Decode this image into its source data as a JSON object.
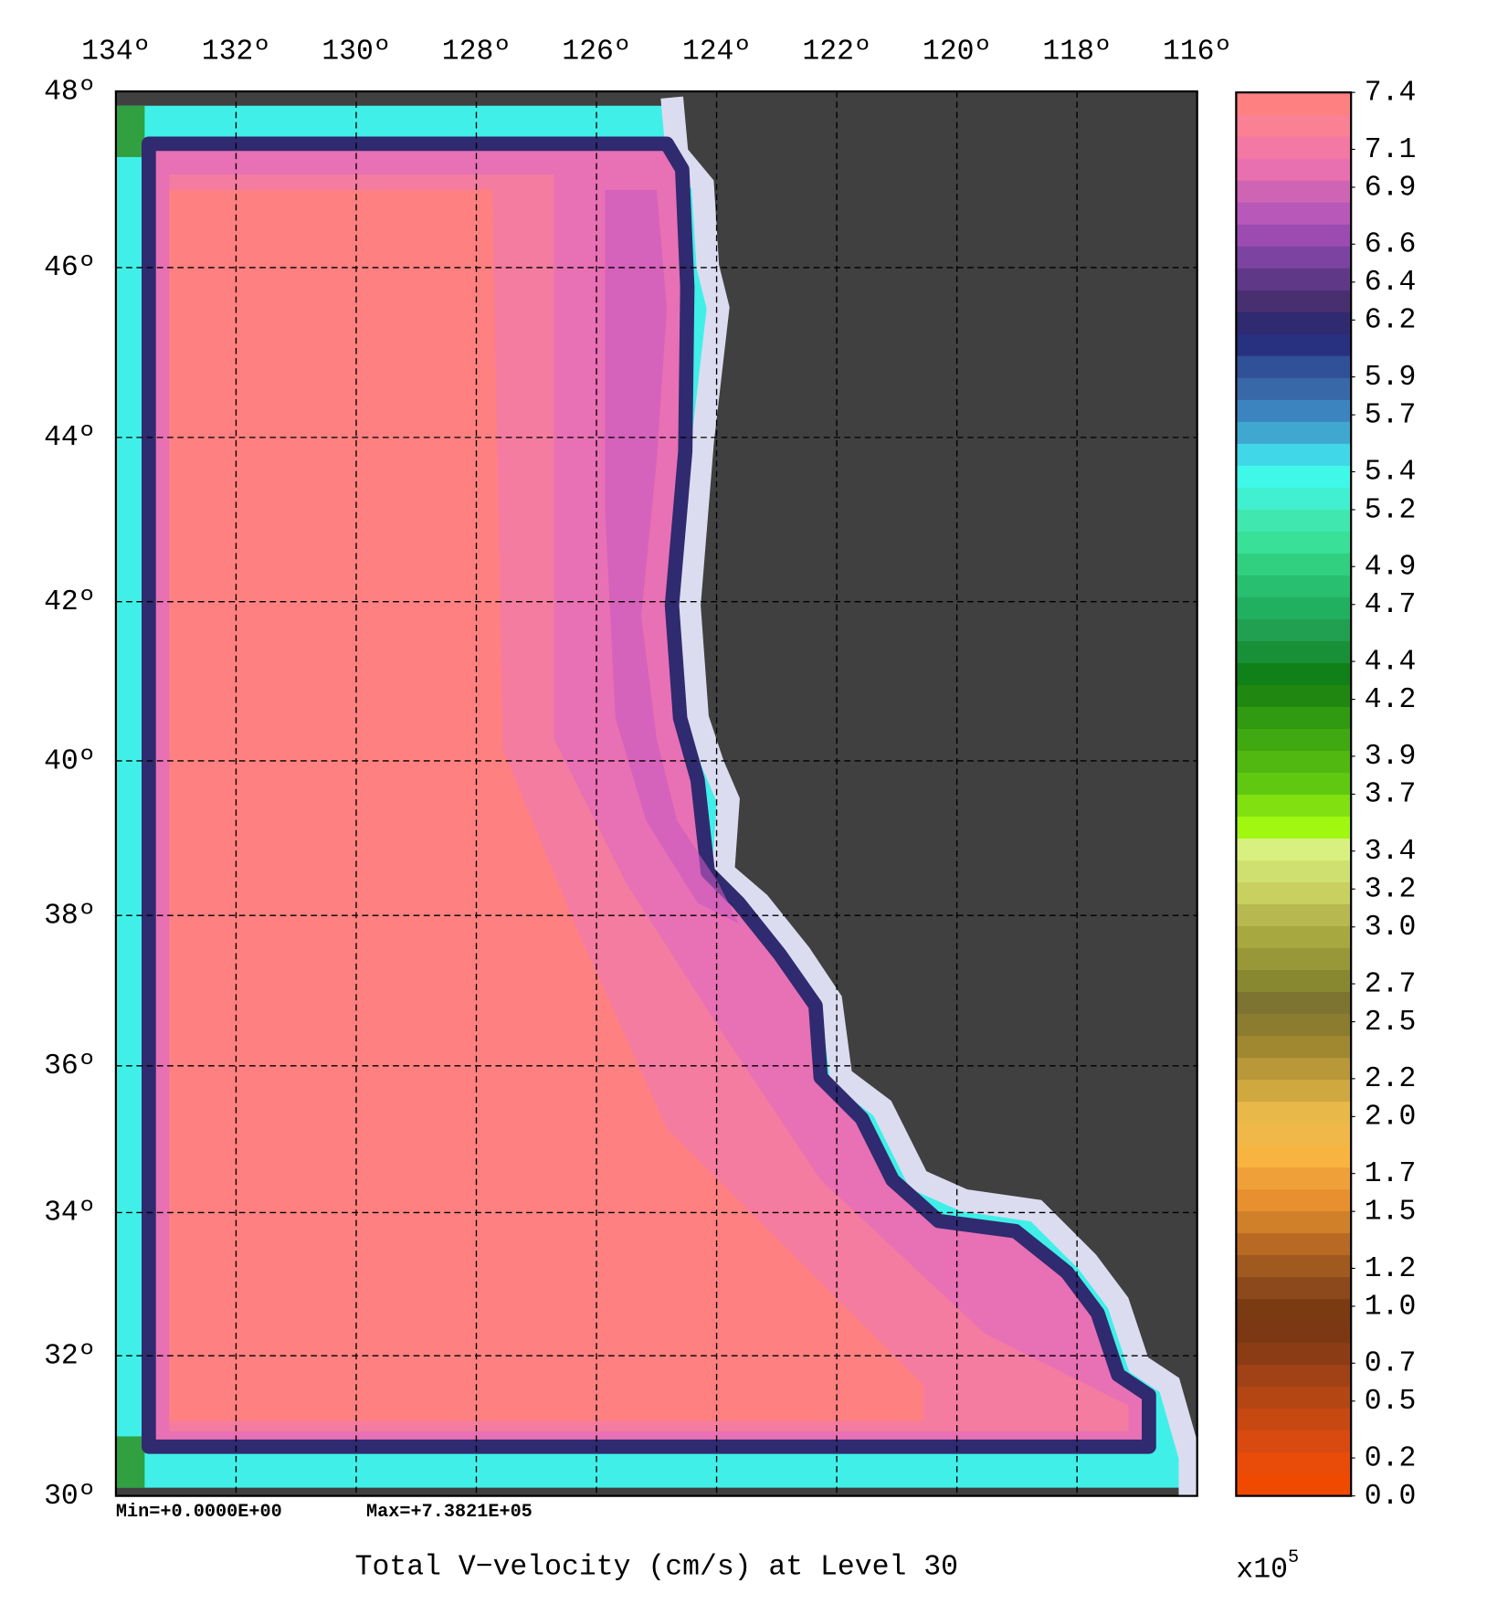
{
  "chart_data": {
    "type": "map",
    "projection": "mercator",
    "title": "Total V−velocity (cm/s) at Level 30",
    "stats": {
      "min": "Min=+0.0000E+00",
      "max": "Max=+7.3821E+05"
    },
    "xlim": [
      134,
      116
    ],
    "xticks": [
      {
        "value": 134,
        "label": "134º"
      },
      {
        "value": 132,
        "label": "132º"
      },
      {
        "value": 130,
        "label": "130º"
      },
      {
        "value": 128,
        "label": "128º"
      },
      {
        "value": 126,
        "label": "126º"
      },
      {
        "value": 124,
        "label": "124º"
      },
      {
        "value": 122,
        "label": "122º"
      },
      {
        "value": 120,
        "label": "120º"
      },
      {
        "value": 118,
        "label": "118º"
      },
      {
        "value": 116,
        "label": "116º"
      }
    ],
    "ylim": [
      30,
      48
    ],
    "yticks": [
      {
        "value": 30,
        "label": "30º"
      },
      {
        "value": 32,
        "label": "32º"
      },
      {
        "value": 34,
        "label": "34º"
      },
      {
        "value": 36,
        "label": "36º"
      },
      {
        "value": 38,
        "label": "38º"
      },
      {
        "value": 40,
        "label": "40º"
      },
      {
        "value": 42,
        "label": "42º"
      },
      {
        "value": 44,
        "label": "44º"
      },
      {
        "value": 46,
        "label": "46º"
      },
      {
        "value": 48,
        "label": "48º"
      }
    ],
    "grid": true,
    "grid_style": "dashed",
    "land_color": "#404040",
    "colorbar": {
      "lim": [
        0,
        7.4
      ],
      "ticks": [
        {
          "value": 0,
          "label": "0.0"
        },
        0.2,
        0.5,
        0.7,
        {
          "value": 1,
          "label": "1.0"
        },
        1.2,
        1.5,
        1.7,
        {
          "value": 2,
          "label": "2.0"
        },
        2.2,
        2.5,
        2.7,
        {
          "value": 3,
          "label": "3.0"
        },
        3.2,
        3.4,
        3.7,
        3.9,
        4.2,
        4.4,
        4.7,
        4.9,
        5.2,
        5.4,
        5.7,
        5.9,
        6.2,
        6.4,
        6.6,
        6.9,
        7.1,
        7.4
      ],
      "colors": [
        "#f04a00",
        "#e84c08",
        "#d84a10",
        "#c84812",
        "#b44614",
        "#a04216",
        "#8c3c14",
        "#7c3812",
        "#7a3a12",
        "#8c4a1c",
        "#a05a20",
        "#b86a24",
        "#d08028",
        "#e89030",
        "#f0a038",
        "#f8b440",
        "#f0b848",
        "#e8b848",
        "#d0a840",
        "#b89838",
        "#a08830",
        "#8c7c30",
        "#7c7430",
        "#888830",
        "#989838",
        "#a8a840",
        "#b8b850",
        "#c8d060",
        "#d0e070",
        "#d8f080",
        "#a0f810",
        "#80e010",
        "#60c810",
        "#50b810",
        "#40a810",
        "#309a10",
        "#208810",
        "#108018",
        "#189038",
        "#20a050",
        "#20b060",
        "#28c070",
        "#30d080",
        "#38e098",
        "#40e8b0",
        "#40f0d0",
        "#40f8e8",
        "#40d8e8",
        "#40a8d0",
        "#3c84c0",
        "#3868a8",
        "#305098",
        "#283080",
        "#302a70",
        "#483070",
        "#603888",
        "#7c44a0",
        "#9c4cb0",
        "#b858b8",
        "#d064b4",
        "#e870b0",
        "#f478a4",
        "#fa8094",
        "#ff8080"
      ],
      "multiplier": "x10",
      "exponent": "5"
    }
  }
}
